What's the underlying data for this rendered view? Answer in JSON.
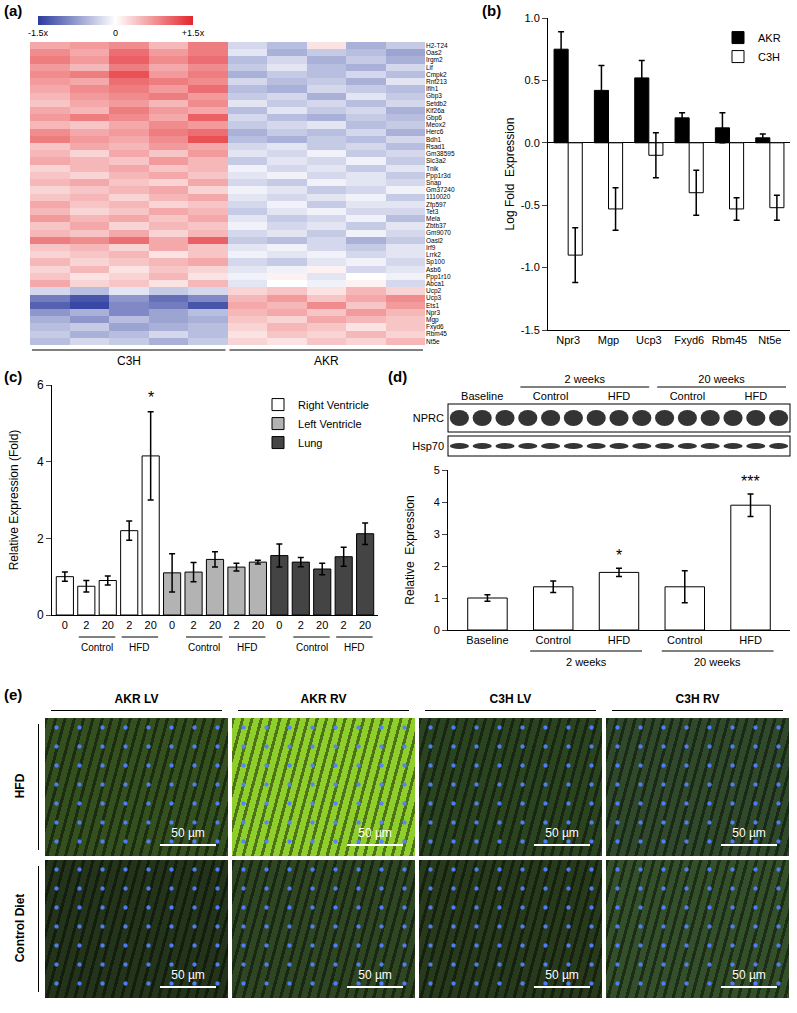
{
  "panel_labels": [
    "(a)",
    "(b)",
    "(c)",
    "(d)",
    "(e)"
  ],
  "chart_data": [
    {
      "type": "heatmap",
      "rows": [
        "H2-T24",
        "Oas2",
        "Irgm2",
        "Lif",
        "Cmpk2",
        "Rnf213",
        "Ifih1",
        "Gbp3",
        "Setdb2",
        "Kif26a",
        "Gbp6",
        "Meox2",
        "Herc6",
        "Bdh1",
        "Rsad1",
        "Gm38595",
        "Slc3a2",
        "Tnik",
        "Ppp1r3d",
        "Snap",
        "Gm37240",
        "1110020",
        "Zfp597",
        "Tet3",
        "Mela",
        "Zbtb37",
        "Gm9070",
        "Oasl2",
        "Irf9",
        "Lrrk2",
        "Sp100",
        "Asb6",
        "Ppp1r10",
        "Abca1",
        "Ucp2",
        "Ucp3",
        "Ets1",
        "Npr3",
        "Mgp",
        "Fxyd6",
        "Rbm45",
        "Nt5e"
      ],
      "column_groups": [
        "C3H",
        "C3H",
        "C3H",
        "C3H",
        "C3H",
        "AKR",
        "AKR",
        "AKR",
        "AKR",
        "AKR"
      ],
      "colors": [
        "#2b3b9e",
        "#ffffff",
        "#e3262b"
      ],
      "colorbar": {
        "range": [
          -1.5,
          1.5
        ],
        "ticks": [
          {
            "value": -1.5,
            "label": "-1.5x"
          },
          0,
          {
            "value": 1.5,
            "label": "+1.5x"
          }
        ]
      },
      "cells": [
        [
          0.6,
          0.7,
          0.8,
          0.5,
          0.9,
          -0.3,
          -0.5,
          0.2,
          -0.6,
          -0.4
        ],
        [
          0.8,
          0.6,
          1.0,
          0.7,
          0.9,
          -0.2,
          -0.6,
          -0.4,
          -0.5,
          -0.7
        ],
        [
          0.9,
          0.7,
          1.1,
          0.8,
          1.0,
          -0.5,
          -0.3,
          -0.6,
          -0.4,
          -0.6
        ],
        [
          0.7,
          0.5,
          0.9,
          0.6,
          0.8,
          -0.4,
          -0.2,
          -0.5,
          -0.6,
          -0.3
        ],
        [
          0.8,
          0.9,
          1.2,
          0.7,
          0.9,
          -0.6,
          -0.4,
          -0.5,
          -0.3,
          -0.5
        ],
        [
          0.7,
          0.6,
          1.0,
          0.9,
          0.8,
          -0.3,
          -0.5,
          -0.4,
          -0.6,
          -0.2
        ],
        [
          0.6,
          0.8,
          0.9,
          0.7,
          1.0,
          -0.5,
          -0.6,
          -0.3,
          -0.4,
          -0.5
        ],
        [
          0.5,
          0.7,
          0.8,
          0.9,
          0.7,
          -0.4,
          -0.3,
          -0.6,
          -0.2,
          -0.4
        ],
        [
          0.4,
          0.6,
          0.7,
          0.5,
          0.8,
          -0.2,
          -0.4,
          -0.3,
          -0.5,
          -0.3
        ],
        [
          0.6,
          0.5,
          0.9,
          0.7,
          0.6,
          -0.5,
          -0.2,
          -0.4,
          -0.3,
          -0.6
        ],
        [
          0.7,
          0.9,
          0.8,
          0.6,
          1.1,
          -0.3,
          -0.5,
          -0.6,
          -0.4,
          -0.5
        ],
        [
          0.5,
          0.4,
          0.6,
          0.8,
          0.7,
          -0.4,
          -0.3,
          -0.2,
          -0.5,
          -0.4
        ],
        [
          0.8,
          0.6,
          0.7,
          0.9,
          1.0,
          -0.6,
          -0.4,
          -0.5,
          -0.3,
          -0.6
        ],
        [
          0.9,
          0.7,
          0.6,
          0.8,
          1.2,
          -0.5,
          -0.6,
          -0.4,
          -0.5,
          -0.3
        ],
        [
          0.4,
          0.6,
          0.5,
          0.7,
          0.6,
          -0.3,
          -0.2,
          -0.4,
          -0.3,
          -0.5
        ],
        [
          0.5,
          0.3,
          0.6,
          0.4,
          0.7,
          -0.2,
          -0.3,
          -0.1,
          -0.4,
          -0.3
        ],
        [
          0.6,
          0.5,
          0.4,
          0.7,
          0.5,
          -0.4,
          -0.2,
          -0.3,
          -0.1,
          -0.4
        ],
        [
          0.3,
          0.5,
          0.6,
          0.4,
          0.5,
          -0.1,
          -0.3,
          -0.2,
          -0.4,
          -0.2
        ],
        [
          0.4,
          0.3,
          0.5,
          0.6,
          0.4,
          -0.2,
          -0.1,
          -0.3,
          -0.2,
          -0.4
        ],
        [
          0.5,
          0.6,
          0.4,
          0.3,
          0.6,
          -0.3,
          -0.4,
          -0.1,
          -0.2,
          -0.3
        ],
        [
          0.3,
          0.4,
          0.5,
          0.6,
          0.3,
          -0.1,
          -0.2,
          -0.4,
          -0.3,
          -0.1
        ],
        [
          0.4,
          0.5,
          0.3,
          0.5,
          0.6,
          -0.2,
          -0.3,
          -0.2,
          -0.1,
          -0.4
        ],
        [
          0.6,
          0.4,
          0.5,
          0.3,
          0.4,
          -0.3,
          -0.1,
          -0.4,
          -0.2,
          -0.2
        ],
        [
          0.5,
          0.3,
          0.4,
          0.6,
          0.5,
          -0.4,
          -0.2,
          -0.1,
          -0.3,
          -0.3
        ],
        [
          0.7,
          0.5,
          0.6,
          0.4,
          0.6,
          -0.2,
          -0.4,
          -0.3,
          -0.1,
          -0.5
        ],
        [
          0.4,
          0.6,
          0.3,
          0.5,
          0.4,
          -0.1,
          -0.3,
          -0.2,
          -0.4,
          -0.2
        ],
        [
          0.5,
          0.4,
          0.6,
          0.3,
          0.5,
          -0.3,
          -0.2,
          -0.4,
          -0.1,
          -0.3
        ],
        [
          0.9,
          0.8,
          1.0,
          0.6,
          1.1,
          -0.4,
          -0.5,
          -0.3,
          -0.6,
          -0.4
        ],
        [
          0.4,
          0.5,
          0.3,
          0.6,
          0.4,
          -0.2,
          -0.1,
          -0.3,
          -0.4,
          -0.2
        ],
        [
          0.3,
          0.4,
          0.5,
          0.2,
          0.4,
          -0.1,
          -0.2,
          -0.1,
          -0.3,
          -0.2
        ],
        [
          0.5,
          0.3,
          0.4,
          0.5,
          0.6,
          -0.3,
          -0.4,
          -0.2,
          -0.1,
          -0.3
        ],
        [
          0.3,
          0.5,
          0.2,
          0.4,
          0.3,
          -0.2,
          -0.1,
          0.1,
          -0.3,
          -0.2
        ],
        [
          0.4,
          0.2,
          0.3,
          0.5,
          0.2,
          -0.1,
          0.1,
          -0.2,
          0.0,
          -0.1
        ],
        [
          0.6,
          0.3,
          0.4,
          0.2,
          0.5,
          -0.2,
          0.0,
          -0.1,
          0.1,
          -0.3
        ],
        [
          -0.3,
          -0.5,
          -0.2,
          -0.4,
          -0.3,
          0.3,
          0.4,
          0.2,
          0.5,
          0.3
        ],
        [
          -1.0,
          -1.3,
          -0.8,
          -1.1,
          -0.9,
          0.5,
          0.7,
          0.4,
          0.6,
          0.8
        ],
        [
          -1.2,
          -1.4,
          -0.9,
          -1.0,
          -1.3,
          0.6,
          0.5,
          0.8,
          0.4,
          0.7
        ],
        [
          -0.8,
          -0.6,
          -0.9,
          -0.7,
          -0.5,
          0.5,
          0.6,
          0.4,
          0.7,
          0.5
        ],
        [
          -0.6,
          -0.8,
          -0.5,
          -0.7,
          -0.6,
          0.4,
          0.3,
          0.6,
          0.5,
          0.4
        ],
        [
          -0.5,
          -0.4,
          -0.7,
          -0.6,
          -0.5,
          0.3,
          0.5,
          0.4,
          0.2,
          0.4
        ],
        [
          -0.4,
          -0.6,
          -0.5,
          -0.3,
          -0.5,
          0.2,
          0.4,
          0.3,
          0.5,
          0.3
        ],
        [
          -0.5,
          -0.3,
          -0.4,
          -0.6,
          -0.4,
          0.3,
          0.2,
          0.4,
          0.3,
          0.5
        ]
      ]
    },
    {
      "type": "bar",
      "ylabel": "Log Fold  Expression",
      "categories": [
        "Npr3",
        "Mgp",
        "Ucp3",
        "Fxyd6",
        "Rbm45",
        "Nt5e"
      ],
      "ylim": [
        -1.5,
        1.0
      ],
      "yticks": [
        -1.5,
        {
          "value": -1,
          "label": "-1.0"
        },
        -0.5,
        {
          "value": 0,
          "label": "0.0"
        },
        0.5,
        {
          "value": 1,
          "label": "1.0"
        }
      ],
      "legend": "top right",
      "series": [
        {
          "name": "AKR",
          "color": "#000000",
          "values": [
            0.75,
            0.42,
            0.52,
            0.2,
            0.12,
            0.04
          ],
          "errors": [
            0.14,
            0.2,
            0.14,
            0.04,
            0.12,
            0.03
          ]
        },
        {
          "name": "C3H",
          "color": "#ffffff",
          "values": [
            -0.9,
            -0.53,
            -0.1,
            -0.4,
            -0.53,
            -0.52
          ],
          "errors": [
            0.22,
            0.17,
            0.18,
            0.18,
            0.09,
            0.1
          ]
        }
      ]
    },
    {
      "type": "bar",
      "ylabel": "Relative Expression (Fold)",
      "categories": [
        "0",
        "2",
        "20",
        "2",
        "20",
        "0",
        "2",
        "20",
        "2",
        "20",
        "0",
        "2",
        "20",
        "2",
        "20"
      ],
      "diet": [
        null,
        "Control",
        "Control",
        "HFD",
        "HFD",
        null,
        "Control",
        "Control",
        "HFD",
        "HFD",
        null,
        "Control",
        "Control",
        "HFD",
        "HFD"
      ],
      "ylim": [
        0,
        6
      ],
      "yticks": [
        0,
        2,
        4,
        6
      ],
      "legend": "top right",
      "annotations": [
        {
          "text": "*",
          "x": 4,
          "y": 5.4
        }
      ],
      "series": [
        {
          "name": "Right Ventricle",
          "color": "#ffffff",
          "values": [
            1.0,
            0.75,
            0.9,
            2.2,
            4.15,
            null,
            null,
            null,
            null,
            null,
            null,
            null,
            null,
            null,
            null
          ],
          "errors": [
            0.12,
            0.15,
            0.12,
            0.25,
            1.15,
            null,
            null,
            null,
            null,
            null,
            null,
            null,
            null,
            null,
            null
          ]
        },
        {
          "name": "Left Ventricle",
          "color": "#b3b3b3",
          "values": [
            null,
            null,
            null,
            null,
            null,
            1.1,
            1.12,
            1.45,
            1.25,
            1.38,
            null,
            null,
            null,
            null,
            null
          ],
          "errors": [
            null,
            null,
            null,
            null,
            null,
            0.5,
            0.25,
            0.2,
            0.1,
            0.05,
            null,
            null,
            null,
            null,
            null
          ]
        },
        {
          "name": "Lung",
          "color": "#444444",
          "values": [
            null,
            null,
            null,
            null,
            null,
            null,
            null,
            null,
            null,
            null,
            1.55,
            1.38,
            1.2,
            1.52,
            2.12
          ],
          "errors": [
            null,
            null,
            null,
            null,
            null,
            null,
            null,
            null,
            null,
            null,
            0.3,
            0.12,
            0.15,
            0.25,
            0.28
          ]
        }
      ]
    },
    {
      "type": "bar",
      "ylabel": "Relative  Expression",
      "categories": [
        "Baseline",
        "Control",
        "HFD",
        "Control",
        "HFD"
      ],
      "period": [
        null,
        "2 weeks",
        "2 weeks",
        "20 weeks",
        "20 weeks"
      ],
      "ylim": [
        0,
        5
      ],
      "yticks": [
        0,
        1,
        2,
        3,
        4,
        5
      ],
      "color": "#ffffff",
      "values": [
        1.0,
        1.35,
        1.8,
        1.35,
        3.9
      ],
      "errors": [
        0.1,
        0.18,
        0.13,
        0.5,
        0.35
      ],
      "annotations": [
        {
          "text": "*",
          "x": 2,
          "y": 2.0
        },
        {
          "text": "***",
          "x": 4,
          "y": 4.3
        }
      ]
    }
  ],
  "blot": {
    "rows": [
      "NPRC",
      "Hsp70"
    ]
  },
  "micrographs": {
    "columns": [
      "AKR LV",
      "AKR RV",
      "C3H LV",
      "C3H RV"
    ],
    "rows": [
      "HFD",
      "Control Diet"
    ],
    "scale_bar": "50 µm",
    "colors": [
      [
        "#33501e",
        "#8fcf2c",
        "#2b4420",
        "#30492a"
      ],
      [
        "#23341a",
        "#2e4622",
        "#283a1c",
        "#34502a"
      ]
    ]
  }
}
